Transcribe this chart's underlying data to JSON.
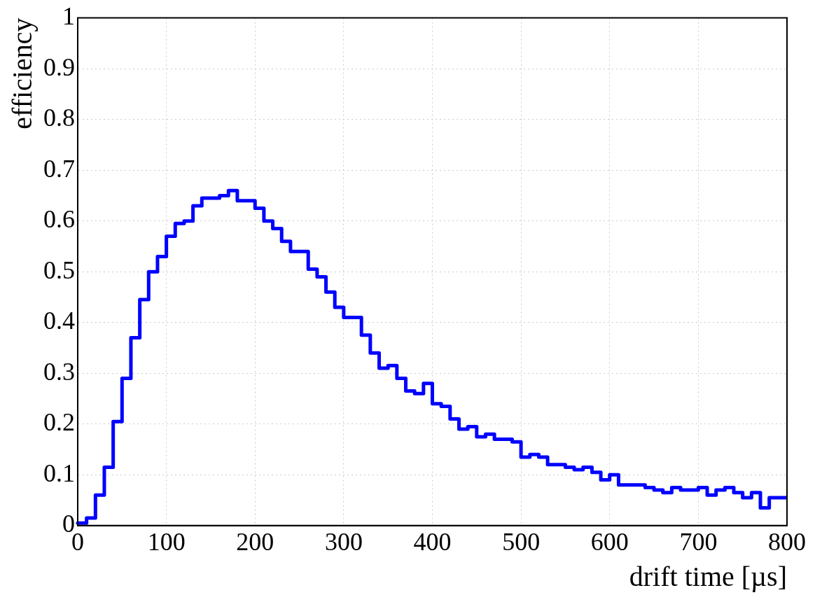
{
  "chart_data": {
    "type": "step",
    "xlabel": "drift time [µs]",
    "ylabel": "efficiency",
    "color": "#0000ff",
    "x": [
      0,
      10,
      20,
      30,
      40,
      50,
      60,
      70,
      80,
      90,
      100,
      110,
      120,
      130,
      140,
      150,
      160,
      170,
      180,
      190,
      200,
      210,
      220,
      230,
      240,
      250,
      260,
      270,
      280,
      290,
      300,
      310,
      320,
      330,
      340,
      350,
      360,
      370,
      380,
      390,
      400,
      410,
      420,
      430,
      440,
      450,
      460,
      470,
      480,
      490,
      500,
      510,
      520,
      530,
      540,
      550,
      560,
      570,
      580,
      590,
      600,
      610,
      620,
      630,
      640,
      650,
      660,
      670,
      680,
      690,
      700,
      710,
      720,
      730,
      740,
      750,
      760,
      770,
      780,
      790,
      800
    ],
    "values": [
      0.002,
      0.005,
      0.015,
      0.06,
      0.115,
      0.205,
      0.29,
      0.37,
      0.445,
      0.5,
      0.53,
      0.57,
      0.595,
      0.6,
      0.63,
      0.645,
      0.645,
      0.65,
      0.66,
      0.64,
      0.64,
      0.625,
      0.6,
      0.585,
      0.56,
      0.54,
      0.54,
      0.505,
      0.49,
      0.46,
      0.43,
      0.41,
      0.41,
      0.375,
      0.34,
      0.31,
      0.315,
      0.29,
      0.265,
      0.26,
      0.28,
      0.24,
      0.235,
      0.21,
      0.19,
      0.195,
      0.175,
      0.18,
      0.17,
      0.17,
      0.165,
      0.135,
      0.14,
      0.135,
      0.12,
      0.12,
      0.115,
      0.11,
      0.115,
      0.105,
      0.09,
      0.1,
      0.08,
      0.08,
      0.08,
      0.075,
      0.07,
      0.065,
      0.075,
      0.07,
      0.07,
      0.075,
      0.06,
      0.07,
      0.075,
      0.065,
      0.055,
      0.065,
      0.035,
      0.055,
      0.055
    ],
    "xlim": [
      0,
      800
    ],
    "xticks": [
      0,
      100,
      200,
      300,
      400,
      500,
      600,
      700,
      800
    ],
    "ylim": [
      0,
      1
    ],
    "yticks": [
      0,
      0.1,
      0.2,
      0.3,
      0.4,
      0.5,
      0.6,
      0.7,
      0.8,
      0.9,
      1
    ],
    "grid": true,
    "legend": false
  }
}
